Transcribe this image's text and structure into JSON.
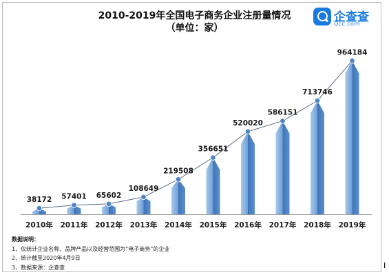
{
  "header": {
    "title": "2010-2019年全国电子商务企业注册量情况",
    "unit": "（单位：家）"
  },
  "logo": {
    "name": "企查查",
    "url": "Qcc.com"
  },
  "chart_data": {
    "type": "bar",
    "categories": [
      "2010年",
      "2011年",
      "2012年",
      "2013年",
      "2014年",
      "2015年",
      "2016年",
      "2017年",
      "2018年",
      "2019年"
    ],
    "values": [
      38172,
      57401,
      65602,
      108649,
      219508,
      356651,
      520020,
      586151,
      713746,
      964184
    ],
    "data_labels": [
      "38172",
      "57401",
      "65602",
      "108649",
      "219508",
      "356651",
      "520020",
      "586151",
      "713746",
      "964184"
    ],
    "title": "2010-2019年全国电子商务企业注册量情况",
    "ylabel": "",
    "ylim": [
      0,
      1000000
    ],
    "grid": false,
    "legend": "none",
    "overlay_line": true,
    "colors": {
      "bar": "#6f9fd4",
      "bar_dark": "#3e74b8",
      "line": "#5a6a86",
      "marker": "#4f86c6"
    }
  },
  "notes": {
    "heading": "数据说明：",
    "items": [
      "1、仅统计企业名称、品牌产品以及经营范围为“电子商务”的企业",
      "2、统计截至2020年4月9日",
      "3、数据来源：企查查"
    ]
  }
}
